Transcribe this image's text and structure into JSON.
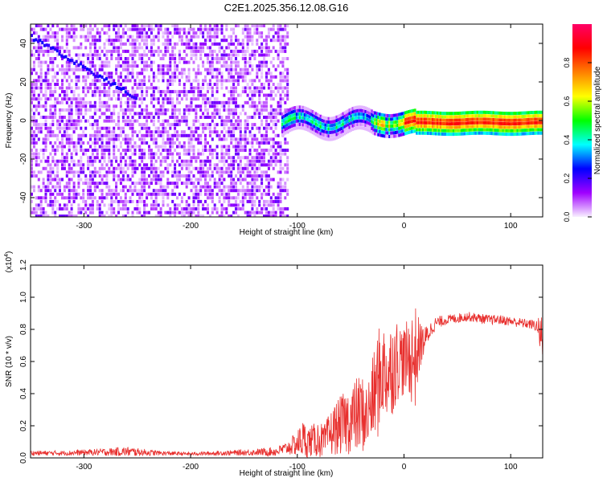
{
  "title": "C2E1.2025.356.12.08.G16",
  "colors": {
    "snr_line": "#e8302e",
    "frame": "#000000"
  },
  "chart_data": [
    {
      "type": "heatmap",
      "name": "spectrogram",
      "xlabel": "Height of straight line (km)",
      "ylabel": "Frequency (Hz)",
      "xlim": [
        -350,
        130
      ],
      "ylim": [
        -50,
        50
      ],
      "xticks": [
        -300,
        -200,
        -100,
        0,
        100
      ],
      "xtick_labels": [
        "-300",
        "-200",
        "-100",
        "0",
        "100"
      ],
      "yticks": [
        40,
        20,
        0,
        -20,
        -40
      ],
      "ytick_labels": [
        "40",
        "20",
        "0",
        "-20",
        "-40"
      ],
      "description_points": {
        "noise_region_x": [
          -350,
          -110
        ],
        "signal_ridge_start_x": -115,
        "ridge_frequency_hz": 0
      },
      "colorbar": {
        "label": "Normalized spectral amplitude",
        "range": [
          0.0,
          1.0
        ],
        "ticks": [
          0.0,
          0.2,
          0.4,
          0.6,
          0.8
        ],
        "tick_labels": [
          "0.0",
          "0.2",
          "0.4",
          "0.6",
          "0.8"
        ],
        "stops": [
          "#f8f0ff",
          "#a000ff",
          "#0000ff",
          "#00ffff",
          "#00ff00",
          "#ffff00",
          "#ff8000",
          "#ff0000",
          "#ff0066"
        ]
      }
    },
    {
      "type": "line",
      "name": "snr",
      "xlabel": "Height of straight line (km)",
      "ylabel": "SNR (10 * v/v)",
      "scale_label": "(x10",
      "scale_exp": "4",
      "scale_close": ")",
      "xlim": [
        -350,
        130
      ],
      "ylim": [
        0.0,
        1.2
      ],
      "xticks": [
        -300,
        -200,
        -100,
        0,
        100
      ],
      "xtick_labels": [
        "-300",
        "-200",
        "-100",
        "0",
        "100"
      ],
      "yticks": [
        0.0,
        0.2,
        0.4,
        0.6,
        0.8,
        1.0,
        1.2
      ],
      "ytick_labels": [
        "0.0",
        "0.2",
        "0.4",
        "0.6",
        "0.8",
        "1.0",
        "1.2"
      ],
      "series": [
        {
          "name": "SNR",
          "x": [
            -350,
            -320,
            -290,
            -260,
            -230,
            -200,
            -170,
            -140,
            -120,
            -110,
            -100,
            -95,
            -90,
            -85,
            -80,
            -75,
            -70,
            -65,
            -60,
            -55,
            -50,
            -45,
            -40,
            -35,
            -30,
            -25,
            -20,
            -15,
            -10,
            -5,
            0,
            5,
            10,
            15,
            20,
            25,
            30,
            40,
            50,
            60,
            70,
            80,
            90,
            100,
            110,
            120,
            125,
            128
          ],
          "mean": [
            0.03,
            0.03,
            0.035,
            0.04,
            0.03,
            0.025,
            0.03,
            0.035,
            0.04,
            0.06,
            0.09,
            0.12,
            0.1,
            0.11,
            0.12,
            0.1,
            0.14,
            0.18,
            0.2,
            0.22,
            0.24,
            0.26,
            0.28,
            0.25,
            0.35,
            0.45,
            0.55,
            0.52,
            0.58,
            0.62,
            0.6,
            0.63,
            0.62,
            0.7,
            0.74,
            0.8,
            0.84,
            0.86,
            0.87,
            0.88,
            0.87,
            0.86,
            0.86,
            0.85,
            0.84,
            0.83,
            0.82,
            0.75
          ],
          "spread": [
            0.015,
            0.015,
            0.02,
            0.03,
            0.015,
            0.01,
            0.015,
            0.02,
            0.03,
            0.04,
            0.08,
            0.12,
            0.1,
            0.1,
            0.12,
            0.1,
            0.14,
            0.16,
            0.18,
            0.2,
            0.22,
            0.24,
            0.25,
            0.22,
            0.25,
            0.35,
            0.3,
            0.3,
            0.3,
            0.25,
            0.22,
            0.25,
            0.35,
            0.15,
            0.08,
            0.05,
            0.04,
            0.03,
            0.03,
            0.03,
            0.03,
            0.03,
            0.03,
            0.03,
            0.03,
            0.03,
            0.04,
            0.15
          ]
        }
      ]
    }
  ]
}
